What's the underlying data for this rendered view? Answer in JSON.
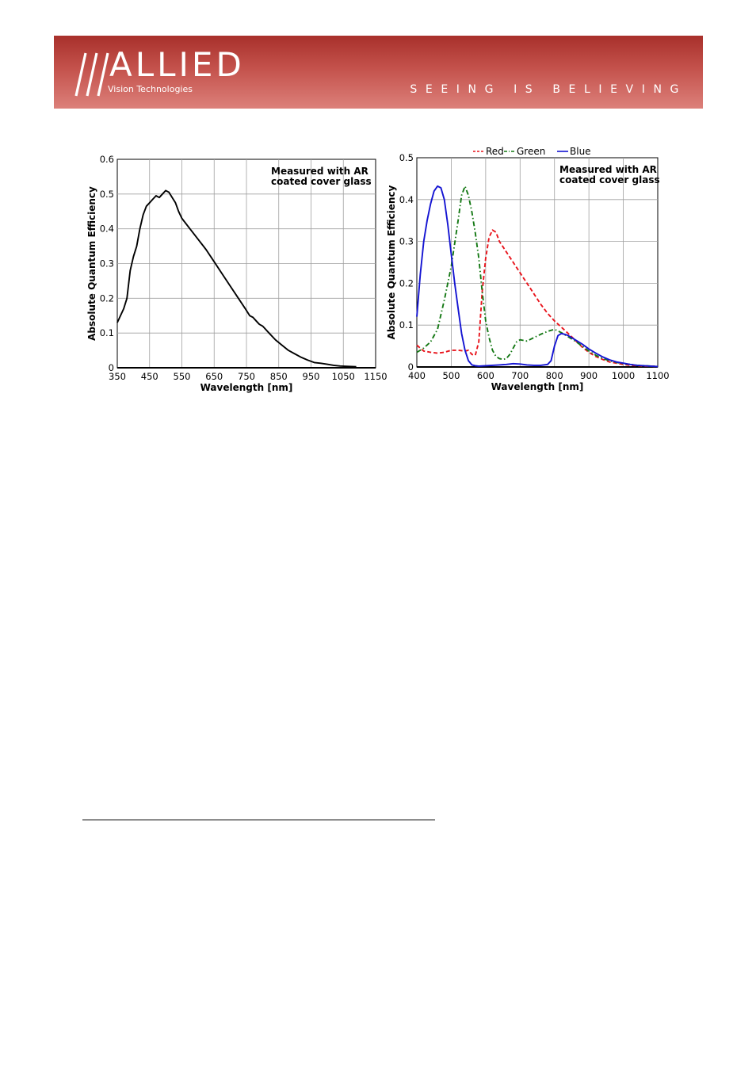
{
  "header": {
    "logo_word": "ALLIED",
    "logo_sub": "Vision Technologies",
    "tagline": "SEEING IS BELIEVING",
    "colors": {
      "banner_top": "#a8302b",
      "banner_bottom": "#dc807a",
      "text": "#ffffff"
    }
  },
  "chart_data": [
    {
      "type": "line",
      "title": "",
      "xlabel": "Wavelength [nm]",
      "ylabel": "Absolute Quantum Efficiency",
      "annotation": [
        "Measured with AR",
        "coated cover glass"
      ],
      "xlim": [
        350,
        1150
      ],
      "ylim": [
        0,
        0.6
      ],
      "xticks": [
        350,
        450,
        550,
        650,
        750,
        850,
        950,
        1050,
        1150
      ],
      "yticks": [
        0,
        0.1,
        0.2,
        0.3,
        0.4,
        0.5,
        0.6
      ],
      "ytick_labels": [
        "0",
        "0.1",
        "0.2",
        "0.3",
        "0.4",
        "0.5",
        "0.6"
      ],
      "grid": true,
      "series": [
        {
          "color": "#000000",
          "style": "solid",
          "x": [
            350,
            370,
            380,
            390,
            400,
            410,
            420,
            430,
            440,
            450,
            460,
            470,
            480,
            490,
            500,
            510,
            520,
            530,
            540,
            550,
            575,
            600,
            625,
            650,
            675,
            700,
            725,
            750,
            760,
            770,
            780,
            790,
            800,
            820,
            840,
            860,
            880,
            900,
            920,
            940,
            960,
            980,
            1000,
            1020,
            1040,
            1060,
            1090
          ],
          "y": [
            0.13,
            0.17,
            0.2,
            0.28,
            0.32,
            0.35,
            0.4,
            0.44,
            0.465,
            0.475,
            0.485,
            0.495,
            0.49,
            0.5,
            0.51,
            0.505,
            0.49,
            0.475,
            0.45,
            0.43,
            0.4,
            0.37,
            0.34,
            0.305,
            0.27,
            0.235,
            0.2,
            0.165,
            0.15,
            0.145,
            0.135,
            0.125,
            0.12,
            0.1,
            0.08,
            0.065,
            0.05,
            0.04,
            0.03,
            0.022,
            0.015,
            0.013,
            0.01,
            0.007,
            0.005,
            0.004,
            0.003
          ]
        }
      ]
    },
    {
      "type": "line",
      "title": "",
      "xlabel": "Wavelength [nm]",
      "ylabel": "Absolute Quantum Efficiency",
      "annotation": [
        "Measured with AR",
        "coated cover glass"
      ],
      "xlim": [
        400,
        1100
      ],
      "ylim": [
        0,
        0.5
      ],
      "xticks": [
        400,
        500,
        600,
        700,
        800,
        900,
        1000,
        1100
      ],
      "yticks": [
        0,
        0.1,
        0.2,
        0.3,
        0.4,
        0.5
      ],
      "ytick_labels": [
        "0",
        "0.1",
        "0.2",
        "0.3",
        "0.4",
        "0.5"
      ],
      "grid": true,
      "legend": "top",
      "series": [
        {
          "name": "Red",
          "color": "#e8141c",
          "style": "dashed",
          "x": [
            400,
            410,
            420,
            440,
            460,
            480,
            500,
            520,
            540,
            550,
            560,
            570,
            580,
            590,
            600,
            610,
            620,
            630,
            640,
            660,
            680,
            700,
            720,
            740,
            760,
            780,
            800,
            820,
            840,
            860,
            880,
            900,
            920,
            940,
            960,
            980,
            1000,
            1020,
            1040,
            1060,
            1080,
            1100
          ],
          "y": [
            0.052,
            0.045,
            0.038,
            0.035,
            0.033,
            0.035,
            0.04,
            0.04,
            0.038,
            0.04,
            0.03,
            0.028,
            0.06,
            0.18,
            0.26,
            0.31,
            0.327,
            0.322,
            0.3,
            0.275,
            0.25,
            0.225,
            0.2,
            0.175,
            0.15,
            0.128,
            0.11,
            0.095,
            0.08,
            0.064,
            0.048,
            0.035,
            0.025,
            0.018,
            0.012,
            0.009,
            0.006,
            0.004,
            0.003,
            0.002,
            0.002,
            0.001
          ]
        },
        {
          "name": "Green",
          "color": "#147814",
          "style": "dashdot",
          "x": [
            400,
            420,
            440,
            460,
            480,
            500,
            520,
            530,
            540,
            550,
            560,
            570,
            580,
            590,
            600,
            610,
            620,
            630,
            640,
            650,
            660,
            670,
            680,
            690,
            700,
            720,
            740,
            760,
            780,
            800,
            820,
            840,
            860,
            880,
            900,
            920,
            940,
            960,
            980,
            1000,
            1020,
            1040,
            1060,
            1080,
            1100
          ],
          "y": [
            0.035,
            0.045,
            0.06,
            0.09,
            0.16,
            0.24,
            0.35,
            0.41,
            0.432,
            0.41,
            0.37,
            0.32,
            0.26,
            0.18,
            0.11,
            0.07,
            0.04,
            0.025,
            0.02,
            0.018,
            0.02,
            0.03,
            0.045,
            0.06,
            0.065,
            0.062,
            0.07,
            0.078,
            0.085,
            0.09,
            0.082,
            0.072,
            0.062,
            0.05,
            0.038,
            0.028,
            0.02,
            0.015,
            0.011,
            0.008,
            0.006,
            0.004,
            0.003,
            0.002,
            0.001
          ]
        },
        {
          "name": "Blue",
          "color": "#1414d2",
          "style": "solid",
          "x": [
            400,
            410,
            420,
            430,
            440,
            450,
            460,
            470,
            480,
            490,
            500,
            510,
            520,
            530,
            540,
            550,
            560,
            570,
            580,
            600,
            620,
            640,
            660,
            680,
            700,
            720,
            740,
            760,
            780,
            790,
            800,
            810,
            820,
            830,
            840,
            860,
            880,
            900,
            920,
            940,
            960,
            980,
            1000,
            1020,
            1040,
            1060,
            1080,
            1100
          ],
          "y": [
            0.12,
            0.22,
            0.3,
            0.35,
            0.39,
            0.42,
            0.432,
            0.428,
            0.4,
            0.34,
            0.27,
            0.2,
            0.14,
            0.08,
            0.04,
            0.015,
            0.005,
            0.003,
            0.002,
            0.003,
            0.004,
            0.005,
            0.006,
            0.008,
            0.007,
            0.005,
            0.004,
            0.004,
            0.006,
            0.015,
            0.05,
            0.075,
            0.08,
            0.078,
            0.075,
            0.065,
            0.055,
            0.043,
            0.033,
            0.024,
            0.017,
            0.012,
            0.009,
            0.006,
            0.004,
            0.003,
            0.002,
            0.001
          ]
        }
      ]
    }
  ]
}
